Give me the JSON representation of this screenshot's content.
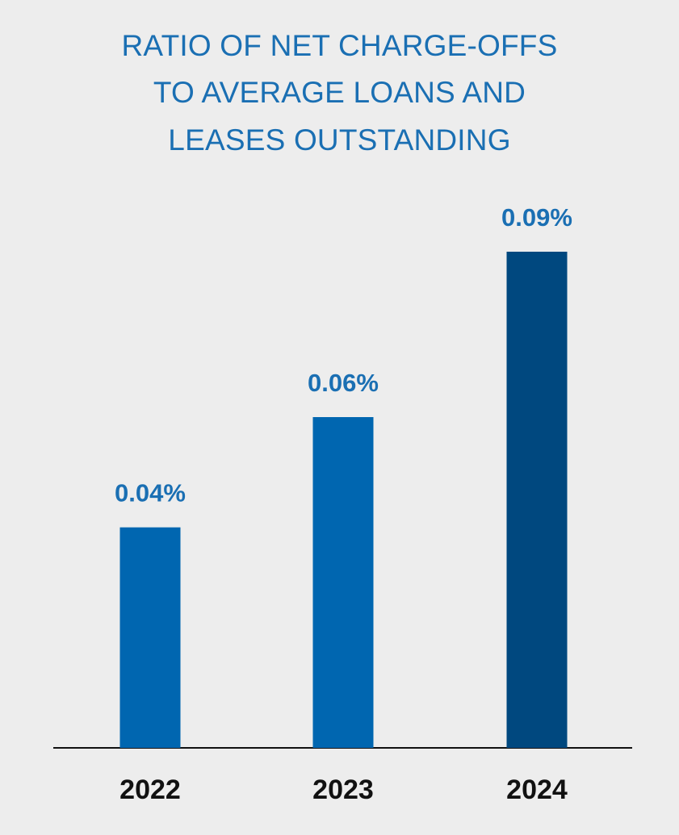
{
  "chart_data": {
    "type": "bar",
    "title_lines": [
      "RATIO OF NET CHARGE-OFFS",
      "TO AVERAGE LOANS AND",
      "LEASES OUTSTANDING"
    ],
    "categories": [
      "2022",
      "2023",
      "2024"
    ],
    "values": [
      0.04,
      0.06,
      0.09
    ],
    "value_labels": [
      "0.04%",
      "0.06%",
      "0.09%"
    ],
    "unit": "%",
    "xlabel": "",
    "ylabel": "",
    "ylim": [
      0,
      0.1
    ],
    "grid": false,
    "legend": "none",
    "colors": {
      "bars": [
        "#0066b0",
        "#0066b0",
        "#00487f"
      ],
      "value_labels": "#1a6fb3",
      "title": "#1a6fb3",
      "category_labels": "#111111",
      "axis": "#111111",
      "background": "#ededed"
    }
  }
}
